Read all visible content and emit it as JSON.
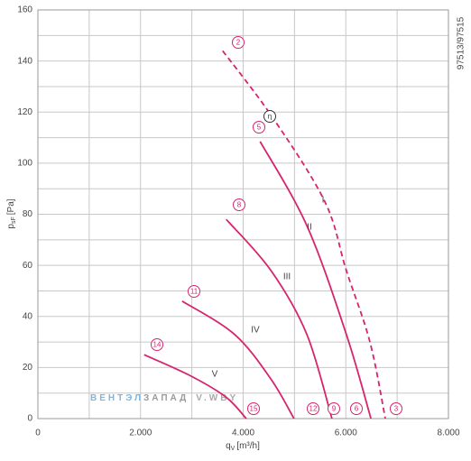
{
  "chart_data": {
    "type": "line",
    "x_label": {
      "main": "q",
      "sub": "V",
      "unit": "[m³/h]"
    },
    "y_label": {
      "main": "p",
      "sub": "sF",
      "unit": "[Pa]"
    },
    "side_text": "97513/97515",
    "watermark": [
      "ВЕНТЭЛ",
      "ЗАПАД",
      "V.WBY"
    ],
    "xlim": [
      0,
      8000
    ],
    "ylim": [
      0,
      160
    ],
    "xticks": [
      {
        "value": 0,
        "label": "0"
      },
      {
        "value": 2000,
        "label": "2.000"
      },
      {
        "value": 4000,
        "label": "4.000"
      },
      {
        "value": 6000,
        "label": "6.000"
      },
      {
        "value": 8000,
        "label": "8.000"
      }
    ],
    "yticks": [
      0,
      20,
      40,
      60,
      80,
      100,
      120,
      140,
      160
    ],
    "x_minor_grid": [
      1000,
      3000,
      5000,
      7000
    ],
    "y_minor_grid": [
      10,
      30,
      50,
      70,
      90,
      110,
      130,
      150
    ],
    "grid": true,
    "series": [
      {
        "name": "I",
        "color": "#d6246e",
        "dashed": true,
        "x": [
          3600,
          4570,
          5590,
          6010,
          6470,
          6770
        ],
        "values": [
          144,
          118,
          85,
          58,
          30,
          0
        ]
      },
      {
        "name": "II",
        "color": "#d6246e",
        "dashed": false,
        "x": [
          4330,
          5240,
          6010,
          6490
        ],
        "values": [
          108.5,
          75.6,
          33,
          0
        ]
      },
      {
        "name": "III",
        "color": "#d6246e",
        "dashed": false,
        "x": [
          3670,
          4540,
          5240,
          5730
        ],
        "values": [
          78,
          58,
          33,
          0
        ]
      },
      {
        "name": "IV",
        "color": "#d6246e",
        "dashed": false,
        "x": [
          2810,
          3830,
          4540,
          4990
        ],
        "values": [
          46,
          33,
          15.5,
          0
        ]
      },
      {
        "name": "V",
        "color": "#d6246e",
        "dashed": false,
        "x": [
          2070,
          2950,
          3660,
          4060
        ],
        "values": [
          25,
          17,
          8.5,
          0
        ]
      }
    ],
    "annotations": [
      "2",
      "η",
      "5",
      "8",
      "11",
      "14",
      "15",
      "12",
      "9",
      "6",
      "3"
    ]
  }
}
